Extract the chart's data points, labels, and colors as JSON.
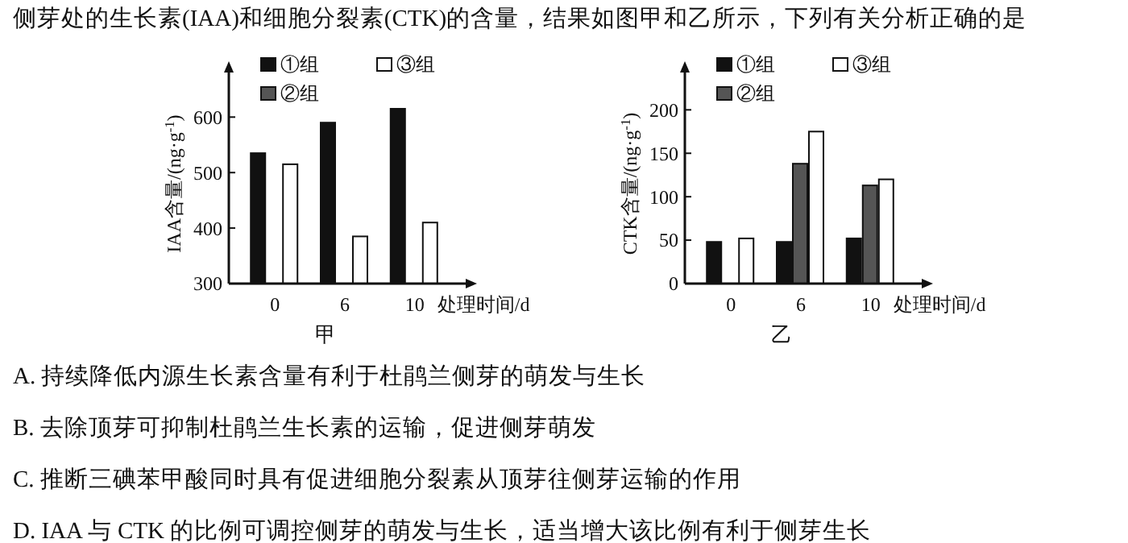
{
  "chart_data": [
    {
      "type": "other",
      "annotations": [
        "侧芽处的生长素(IAA)和细胞分裂素(CTK)的含量，结果如图甲和乙所示，下列有关分析正确的是"
      ]
    },
    {
      "type": "bar",
      "title": "甲",
      "xlabel": "处理时间/d",
      "ylabel": "IAA含量/(ng·g$^{-1}$)",
      "categories": [
        "0",
        "6",
        "10"
      ],
      "ylim": [
        300,
        660
      ],
      "yticks": [
        300,
        400,
        500,
        600
      ],
      "legend": "top",
      "series": [
        {
          "name": "①组",
          "color": "#111111",
          "values": [
            535,
            590,
            615
          ]
        },
        {
          "name": "②组",
          "color": "#555555",
          "values": [
            null,
            null,
            null
          ]
        },
        {
          "name": "③组",
          "color": "#ffffff",
          "values": [
            515,
            385,
            410
          ]
        }
      ]
    },
    {
      "type": "bar",
      "title": "乙",
      "xlabel": "处理时间/d",
      "ylabel": "CTK含量/(ng·g$^{-1}$)",
      "categories": [
        "0",
        "6",
        "10"
      ],
      "ylim": [
        0,
        230
      ],
      "yticks": [
        0,
        50,
        100,
        150,
        200
      ],
      "legend": "top",
      "series": [
        {
          "name": "①组",
          "color": "#111111",
          "values": [
            48,
            48,
            52
          ]
        },
        {
          "name": "②组",
          "color": "#555555",
          "values": [
            null,
            138,
            113
          ]
        },
        {
          "name": "③组",
          "color": "#ffffff",
          "values": [
            52,
            175,
            120
          ]
        }
      ]
    },
    {
      "type": "other",
      "annotations": [
        "A. 持续降低内源生长素含量有利于杜鹃兰侧芽的萌发与生长",
        "B. 去除顶芽可抑制杜鹃兰生长素的运输，促进侧芽萌发",
        "C. 推断三碘苯甲酸同时具有促进细胞分裂素从顶芽往侧芽运输的作用",
        "D. IAA 与 CTK 的比例可调控侧芽的萌发与生长，适当增大该比例有利于侧芽生长"
      ]
    }
  ]
}
